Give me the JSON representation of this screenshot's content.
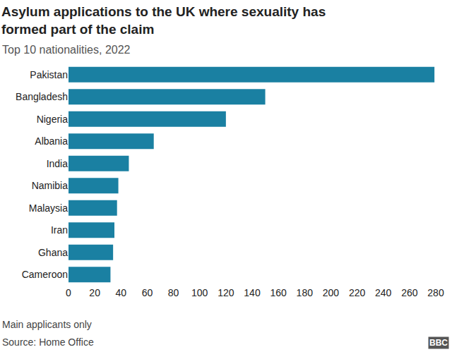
{
  "chart_data": {
    "type": "bar",
    "orientation": "horizontal",
    "title": "Asylum applications to the UK where sexuality has formed part of the claim",
    "subtitle": "Top 10 nationalities, 2022",
    "categories": [
      "Pakistan",
      "Bangladesh",
      "Nigeria",
      "Albania",
      "India",
      "Namibia",
      "Malaysia",
      "Iran",
      "Ghana",
      "Cameroon"
    ],
    "values": [
      279,
      150,
      120,
      65,
      46,
      38,
      37,
      35,
      34,
      32
    ],
    "color": "#1a80a2",
    "xlim": [
      0,
      280
    ],
    "xticks": [
      0,
      20,
      40,
      60,
      80,
      100,
      120,
      140,
      160,
      180,
      200,
      220,
      240,
      260,
      280
    ],
    "grid": false,
    "data_labels": false,
    "footnote": "Main applicants only",
    "source": "Source: Home Office",
    "logo": "BBC"
  }
}
